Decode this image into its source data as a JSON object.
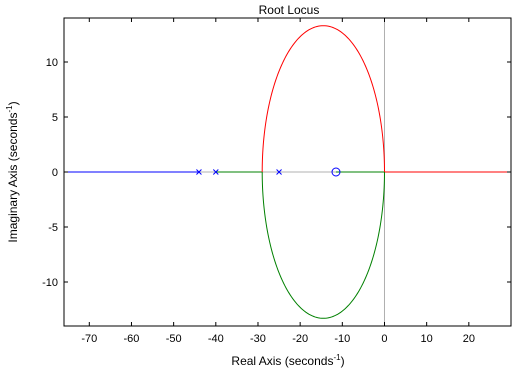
{
  "chart_data": {
    "type": "scatter",
    "title": "Root Locus",
    "xlabel": {
      "text": "Real Axis (seconds",
      "sup": "-1",
      "close": ")"
    },
    "ylabel": {
      "text": "Imaginary Axis (seconds",
      "sup": "-1",
      "close": ")"
    },
    "xlim": [
      -76,
      30
    ],
    "ylim": [
      -14,
      14
    ],
    "x_ticks": [
      -70,
      -60,
      -50,
      -40,
      -30,
      -20,
      -10,
      0,
      10,
      20
    ],
    "y_ticks": [
      -10,
      -5,
      0,
      5,
      10
    ],
    "grid": false,
    "poles": [
      [
        -44,
        0
      ],
      [
        -40,
        0
      ],
      [
        -25,
        0
      ]
    ],
    "zeros": [
      [
        -11.5,
        0
      ]
    ],
    "series": [
      {
        "color": "#0000ff",
        "segments": [
          [
            [
              -76,
              0
            ],
            [
              -44,
              0
            ]
          ]
        ]
      },
      {
        "color": "#008000",
        "segments": [
          [
            [
              -40,
              0
            ],
            [
              -29,
              0
            ]
          ],
          [
            [
              -11.5,
              0
            ],
            [
              0,
              0
            ]
          ]
        ]
      },
      {
        "color": "#ff0000",
        "segments": [
          [
            [
              0,
              0
            ],
            [
              30,
              0
            ]
          ]
        ]
      }
    ],
    "loop": {
      "center_real": -14.5,
      "radius_real": 14.5,
      "radius_imag": 13.3,
      "upper_color": "#ff0000",
      "lower_color": "#008000"
    },
    "colors": {
      "pole_zero": "#0000ff",
      "reference_lines": "#b0b0b0"
    }
  }
}
